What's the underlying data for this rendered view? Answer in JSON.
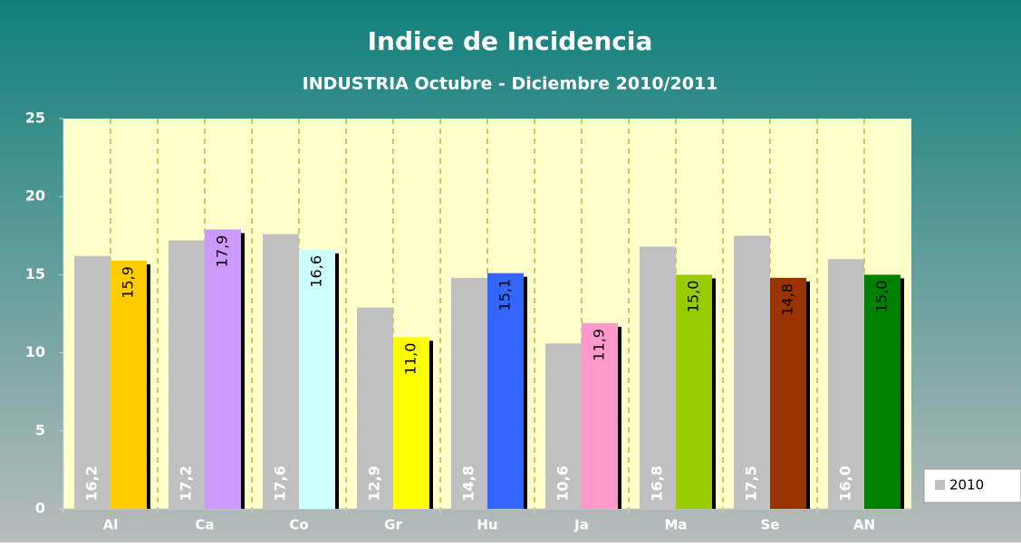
{
  "chart_data": {
    "type": "bar",
    "title": "Indice de Incidencia",
    "subtitle": "INDUSTRIA Octubre - Diciembre 2010/2011",
    "categories": [
      "Al",
      "Ca",
      "Co",
      "Gr",
      "Hu",
      "Ja",
      "Ma",
      "Se",
      "AN"
    ],
    "series": [
      {
        "name": "2010",
        "color": "#c0c0c0",
        "values": [
          16.2,
          17.2,
          17.6,
          12.9,
          14.8,
          10.6,
          16.8,
          17.5,
          16.0
        ],
        "value_labels": [
          "16,2",
          "17,2",
          "17,6",
          "12,9",
          "14,8",
          "10,6",
          "16,8",
          "17,5",
          "16,0"
        ]
      },
      {
        "colors": [
          "#ffcc00",
          "#cc99ff",
          "#ccffff",
          "#ffff00",
          "#3366ff",
          "#ff99cc",
          "#99cc00",
          "#993300",
          "#008000"
        ],
        "values": [
          15.9,
          17.9,
          16.6,
          11.0,
          15.1,
          11.9,
          15.0,
          14.8,
          15.0
        ],
        "value_labels": [
          "15,9",
          "17,9",
          "16,6",
          "11,0",
          "15,1",
          "11,9",
          "15,0",
          "14,8",
          "15,0"
        ]
      }
    ],
    "ylim": [
      0,
      25
    ],
    "yticks": [
      0,
      5,
      10,
      15,
      20,
      25
    ],
    "legend": "right"
  }
}
